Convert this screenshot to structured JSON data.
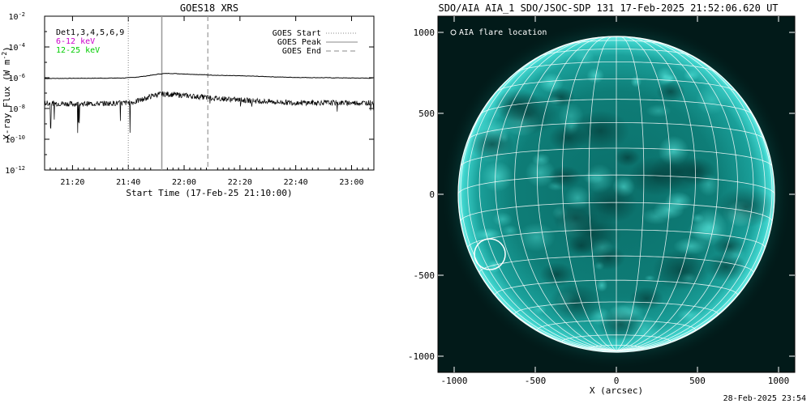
{
  "footer": {
    "timestamp": "28-Feb-2025 23:54"
  },
  "chart_data": [
    {
      "type": "line",
      "title": "GOES18 XRS",
      "xlabel": "Start Time (17-Feb-25 21:10:00)",
      "ylabel": "X-ray Flux (W m",
      "ylabel_exp": "-2",
      "ylabel_close": ")",
      "x_unit": "minutes after 21:10 UT",
      "xlim": [
        0,
        118
      ],
      "x_ticks": [
        {
          "x": 10,
          "label": "21:20"
        },
        {
          "x": 30,
          "label": "21:40"
        },
        {
          "x": 50,
          "label": "22:00"
        },
        {
          "x": 70,
          "label": "22:20"
        },
        {
          "x": 90,
          "label": "22:40"
        },
        {
          "x": 110,
          "label": "23:00"
        }
      ],
      "y_scale": "log",
      "ylim_exp": [
        -12,
        -2
      ],
      "y_ticks": [
        {
          "exp": -2,
          "label": "10",
          "sup": "-2"
        },
        {
          "exp": -4,
          "label": "10",
          "sup": "-4"
        },
        {
          "exp": -6,
          "label": "10",
          "sup": "-6"
        },
        {
          "exp": -8,
          "label": "10",
          "sup": "-8"
        },
        {
          "exp": -10,
          "label": "10",
          "sup": "-10"
        },
        {
          "exp": -12,
          "label": "10",
          "sup": "-12"
        }
      ],
      "series": [
        {
          "name": "6-12 keV",
          "color": "#000000",
          "x": [
            0,
            10,
            20,
            28,
            32,
            36,
            39,
            41,
            43,
            45,
            48,
            52,
            56,
            60,
            65,
            70,
            75,
            80,
            85,
            90,
            100,
            110,
            118
          ],
          "log_y": [
            -6.05,
            -6.04,
            -6.03,
            -6.02,
            -5.98,
            -5.9,
            -5.82,
            -5.76,
            -5.73,
            -5.72,
            -5.74,
            -5.77,
            -5.8,
            -5.83,
            -5.86,
            -5.88,
            -5.9,
            -5.93,
            -5.96,
            -5.98,
            -6.0,
            -6.02,
            -6.03
          ]
        },
        {
          "name": "12-25 keV",
          "color": "#000000",
          "x": [
            0,
            10,
            20,
            28,
            32,
            36,
            39,
            41,
            43,
            45,
            48,
            52,
            56,
            60,
            65,
            70,
            75,
            80,
            85,
            90,
            100,
            110,
            118
          ],
          "log_y": [
            -7.65,
            -7.7,
            -7.68,
            -7.65,
            -7.6,
            -7.35,
            -7.15,
            -7.08,
            -7.06,
            -7.08,
            -7.12,
            -7.18,
            -7.25,
            -7.32,
            -7.38,
            -7.45,
            -7.5,
            -7.55,
            -7.6,
            -7.62,
            -7.63,
            -7.64,
            -7.62
          ]
        }
      ],
      "vlines": [
        {
          "name": "GOES Start",
          "x": 30,
          "style": "dotted"
        },
        {
          "name": "GOES Peak",
          "x": 42,
          "style": "solid"
        },
        {
          "name": "GOES End",
          "x": 58.5,
          "style": "dashed"
        }
      ],
      "annotations_left": [
        {
          "text": "Det1,3,4,5,6,9",
          "color": "#000000"
        },
        {
          "text": "6-12 keV",
          "color": "#cc00cc"
        },
        {
          "text": "12-25 keV",
          "color": "#00cc00"
        }
      ],
      "legend": [
        "GOES Start",
        "GOES Peak",
        "GOES End"
      ],
      "legend_position": "top-right",
      "grid": false
    },
    {
      "type": "heatmap",
      "title": "SDO/AIA AIA_1 SDO/JSOC-SDP 131 17-Feb-2025 21:52:06.620 UT",
      "xlabel": "X (arcsec)",
      "ylabel": "",
      "xlim": [
        -1100,
        1100
      ],
      "ylim": [
        -1100,
        1100
      ],
      "x_ticks": [
        -1000,
        -500,
        0,
        500,
        1000
      ],
      "y_ticks": [
        -1000,
        -500,
        0,
        500,
        1000
      ],
      "solar_radius_arcsec": 975,
      "grid_spacing_deg": 10,
      "legend": [
        {
          "symbol": "circle",
          "label": "AIA flare location"
        }
      ],
      "legend_position": "top-left",
      "flare_location": {
        "x": -780,
        "y": -370,
        "radius": 95
      },
      "colormap": "sdo-aia-131-teal"
    }
  ]
}
